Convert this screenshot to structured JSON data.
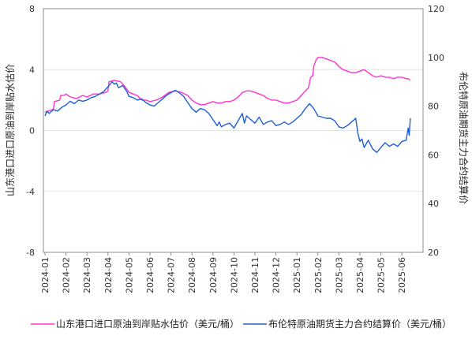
{
  "chart_data": {
    "type": "line",
    "title": "",
    "ylabel_left": "山东港口进口原油到岸贴水估价",
    "ylabel_right": "布伦特原油期货主力合约结算价",
    "ylim_left": [
      -8,
      8
    ],
    "ylim_right": [
      20,
      120
    ],
    "yticks_left": [
      "8",
      "4",
      "0",
      "-4",
      "-8"
    ],
    "yticks_right": [
      "120",
      "100",
      "80",
      "60",
      "40",
      "20"
    ],
    "x_categories": [
      "2024-01",
      "2024-02",
      "2024-03",
      "2024-04",
      "2024-05",
      "2024-06",
      "2024-07",
      "2024-08",
      "2024-09",
      "2024-10",
      "2024-11",
      "2024-12",
      "2025-01",
      "2025-02",
      "2025-03",
      "2025-04",
      "2025-05",
      "2025-06"
    ],
    "grid": true,
    "legend_position": "bottom",
    "series": [
      {
        "name": "山东港口进口原油到岸贴水估价（美元/桶）",
        "axis": "left",
        "color": "#ff33cc",
        "points": [
          [
            0.0,
            1.2
          ],
          [
            0.2,
            1.3
          ],
          [
            0.4,
            1.4
          ],
          [
            0.45,
            1.9
          ],
          [
            0.7,
            2.0
          ],
          [
            0.75,
            2.3
          ],
          [
            0.9,
            2.3
          ],
          [
            1.0,
            2.4
          ],
          [
            1.2,
            2.2
          ],
          [
            1.5,
            2.1
          ],
          [
            1.8,
            2.3
          ],
          [
            2.0,
            2.2
          ],
          [
            2.3,
            2.4
          ],
          [
            2.6,
            2.4
          ],
          [
            2.9,
            2.5
          ],
          [
            3.0,
            2.6
          ],
          [
            3.05,
            3.2
          ],
          [
            3.3,
            3.3
          ],
          [
            3.6,
            3.2
          ],
          [
            3.8,
            2.9
          ],
          [
            4.0,
            2.5
          ],
          [
            4.2,
            2.4
          ],
          [
            4.4,
            2.3
          ],
          [
            4.6,
            2.0
          ],
          [
            4.8,
            2.0
          ],
          [
            5.0,
            1.9
          ],
          [
            5.3,
            2.0
          ],
          [
            5.6,
            2.2
          ],
          [
            5.9,
            2.5
          ],
          [
            6.2,
            2.6
          ],
          [
            6.5,
            2.5
          ],
          [
            6.8,
            2.3
          ],
          [
            7.0,
            2.0
          ],
          [
            7.2,
            1.8
          ],
          [
            7.4,
            1.7
          ],
          [
            7.6,
            1.7
          ],
          [
            7.8,
            1.8
          ],
          [
            8.0,
            1.9
          ],
          [
            8.2,
            1.8
          ],
          [
            8.4,
            1.8
          ],
          [
            8.6,
            1.9
          ],
          [
            8.8,
            1.9
          ],
          [
            9.0,
            2.0
          ],
          [
            9.2,
            2.2
          ],
          [
            9.4,
            2.5
          ],
          [
            9.6,
            2.6
          ],
          [
            9.8,
            2.6
          ],
          [
            10.0,
            2.5
          ],
          [
            10.2,
            2.4
          ],
          [
            10.4,
            2.3
          ],
          [
            10.6,
            2.1
          ],
          [
            10.8,
            2.0
          ],
          [
            11.0,
            2.0
          ],
          [
            11.2,
            1.9
          ],
          [
            11.4,
            1.8
          ],
          [
            11.6,
            1.8
          ],
          [
            11.8,
            1.9
          ],
          [
            12.0,
            2.0
          ],
          [
            12.2,
            2.3
          ],
          [
            12.4,
            2.6
          ],
          [
            12.55,
            2.8
          ],
          [
            12.65,
            3.5
          ],
          [
            12.75,
            3.6
          ],
          [
            12.8,
            4.2
          ],
          [
            12.9,
            4.6
          ],
          [
            13.0,
            4.8
          ],
          [
            13.2,
            4.8
          ],
          [
            13.4,
            4.7
          ],
          [
            13.6,
            4.6
          ],
          [
            13.8,
            4.5
          ],
          [
            14.0,
            4.2
          ],
          [
            14.2,
            4.0
          ],
          [
            14.4,
            3.9
          ],
          [
            14.6,
            3.8
          ],
          [
            14.8,
            3.8
          ],
          [
            15.0,
            3.9
          ],
          [
            15.2,
            4.0
          ],
          [
            15.4,
            3.8
          ],
          [
            15.6,
            3.6
          ],
          [
            15.8,
            3.5
          ],
          [
            16.0,
            3.6
          ],
          [
            16.2,
            3.5
          ],
          [
            16.4,
            3.5
          ],
          [
            16.6,
            3.4
          ],
          [
            16.8,
            3.5
          ],
          [
            17.0,
            3.5
          ],
          [
            17.2,
            3.4
          ],
          [
            17.3,
            3.4
          ],
          [
            17.4,
            3.3
          ]
        ]
      },
      {
        "name": "布伦特原油期货主力合约结算价（美元/桶）",
        "axis": "right",
        "color": "#1f5fd6",
        "points": [
          [
            0.0,
            76.0
          ],
          [
            0.1,
            78.0
          ],
          [
            0.2,
            77.0
          ],
          [
            0.4,
            78.5
          ],
          [
            0.6,
            78.0
          ],
          [
            0.8,
            79.5
          ],
          [
            1.0,
            80.5
          ],
          [
            1.2,
            82.0
          ],
          [
            1.4,
            81.0
          ],
          [
            1.6,
            82.5
          ],
          [
            1.8,
            82.0
          ],
          [
            2.0,
            82.5
          ],
          [
            2.2,
            83.5
          ],
          [
            2.4,
            84.0
          ],
          [
            2.6,
            85.0
          ],
          [
            2.8,
            86.0
          ],
          [
            3.0,
            88.0
          ],
          [
            3.2,
            90.0
          ],
          [
            3.3,
            89.0
          ],
          [
            3.4,
            89.5
          ],
          [
            3.5,
            87.5
          ],
          [
            3.7,
            88.5
          ],
          [
            3.9,
            86.0
          ],
          [
            4.0,
            84.0
          ],
          [
            4.2,
            83.5
          ],
          [
            4.4,
            82.5
          ],
          [
            4.6,
            83.0
          ],
          [
            4.8,
            81.5
          ],
          [
            5.0,
            80.5
          ],
          [
            5.2,
            80.0
          ],
          [
            5.4,
            81.5
          ],
          [
            5.6,
            83.0
          ],
          [
            5.8,
            84.5
          ],
          [
            6.0,
            85.5
          ],
          [
            6.2,
            86.5
          ],
          [
            6.4,
            85.5
          ],
          [
            6.6,
            84.0
          ],
          [
            6.8,
            81.5
          ],
          [
            7.0,
            79.0
          ],
          [
            7.2,
            77.5
          ],
          [
            7.4,
            79.0
          ],
          [
            7.6,
            78.5
          ],
          [
            7.8,
            77.0
          ],
          [
            8.0,
            74.5
          ],
          [
            8.2,
            72.0
          ],
          [
            8.3,
            73.5
          ],
          [
            8.4,
            71.5
          ],
          [
            8.6,
            72.5
          ],
          [
            8.8,
            73.0
          ],
          [
            9.0,
            71.0
          ],
          [
            9.2,
            74.0
          ],
          [
            9.4,
            77.0
          ],
          [
            9.5,
            73.0
          ],
          [
            9.6,
            76.0
          ],
          [
            9.8,
            74.5
          ],
          [
            10.0,
            73.0
          ],
          [
            10.2,
            75.5
          ],
          [
            10.4,
            72.5
          ],
          [
            10.6,
            73.5
          ],
          [
            10.8,
            74.0
          ],
          [
            11.0,
            72.0
          ],
          [
            11.2,
            72.5
          ],
          [
            11.4,
            73.5
          ],
          [
            11.6,
            72.5
          ],
          [
            11.8,
            73.5
          ],
          [
            12.0,
            75.0
          ],
          [
            12.2,
            76.5
          ],
          [
            12.4,
            79.0
          ],
          [
            12.6,
            81.0
          ],
          [
            12.8,
            79.0
          ],
          [
            13.0,
            76.0
          ],
          [
            13.2,
            75.5
          ],
          [
            13.4,
            75.0
          ],
          [
            13.6,
            75.0
          ],
          [
            13.8,
            74.0
          ],
          [
            14.0,
            71.5
          ],
          [
            14.2,
            71.0
          ],
          [
            14.4,
            72.0
          ],
          [
            14.6,
            73.5
          ],
          [
            14.8,
            75.0
          ],
          [
            14.9,
            69.0
          ],
          [
            15.0,
            65.5
          ],
          [
            15.1,
            66.5
          ],
          [
            15.2,
            63.0
          ],
          [
            15.4,
            66.0
          ],
          [
            15.6,
            62.5
          ],
          [
            15.8,
            61.0
          ],
          [
            16.0,
            63.0
          ],
          [
            16.2,
            65.0
          ],
          [
            16.4,
            63.5
          ],
          [
            16.6,
            64.5
          ],
          [
            16.8,
            63.5
          ],
          [
            17.0,
            65.5
          ],
          [
            17.2,
            66.0
          ],
          [
            17.3,
            71.0
          ],
          [
            17.35,
            68.0
          ],
          [
            17.4,
            75.0
          ]
        ]
      }
    ]
  },
  "legend": {
    "items": [
      {
        "label": "山东港口进口原油到岸贴水估价（美元/桶）",
        "color": "#ff33cc"
      },
      {
        "label": "布伦特原油期货主力合约结算价（美元/桶）",
        "color": "#1f5fd6"
      }
    ]
  }
}
